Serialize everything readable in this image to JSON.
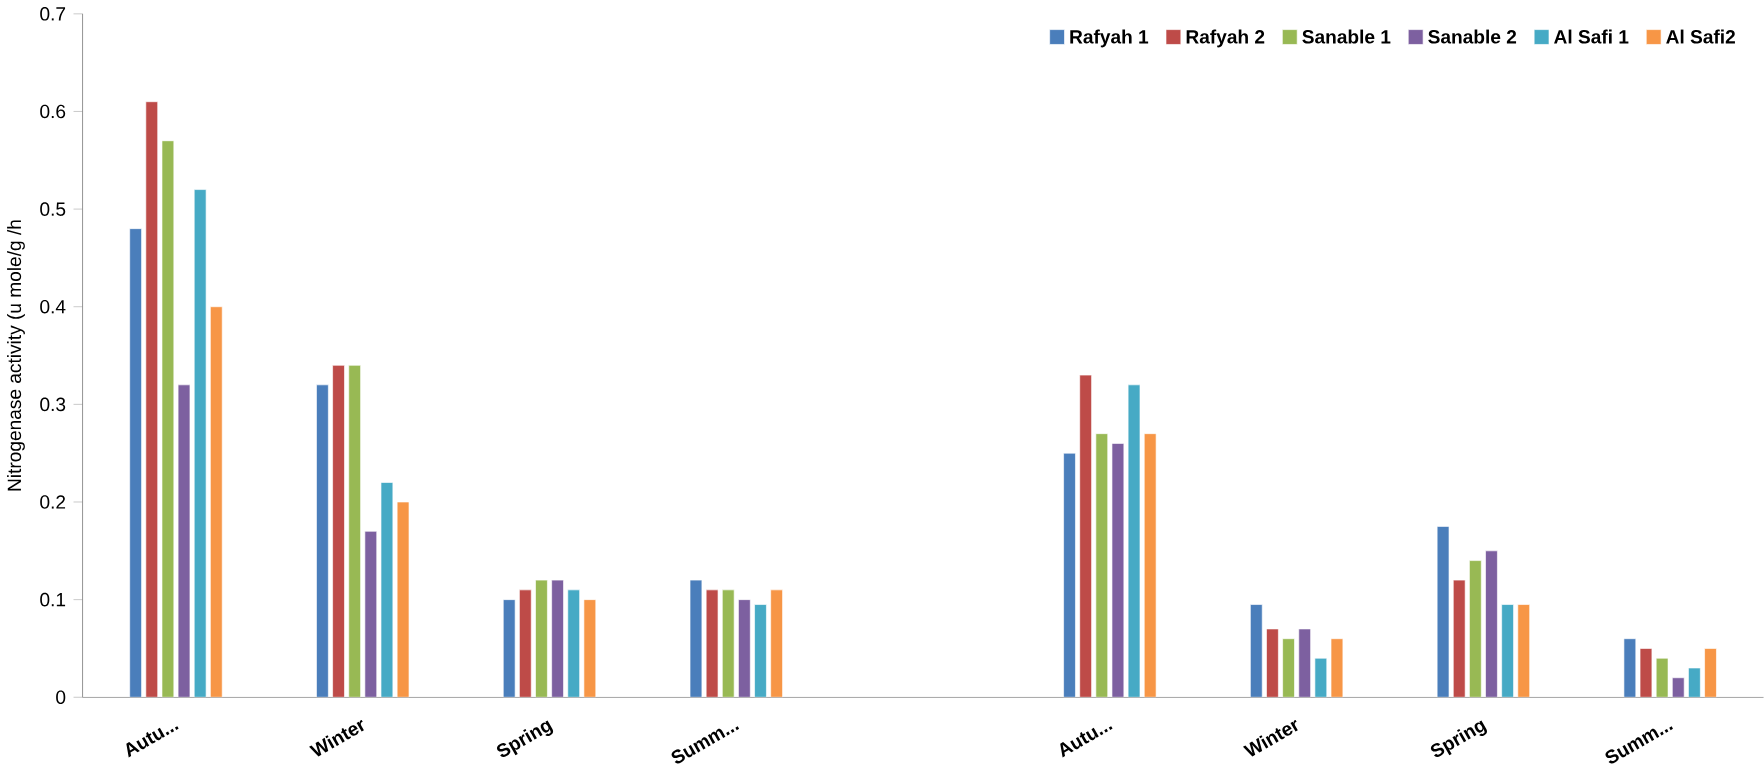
{
  "chart_data": {
    "type": "bar",
    "ylabel": "Nitrogenase activity (u mole/g /h",
    "categories": [
      "Autu...",
      "Winter",
      "Spring",
      "Summ...",
      null,
      "Autu...",
      "Winter",
      "Spring",
      "Summ..."
    ],
    "series": [
      {
        "name": "Rafyah 1",
        "color": "#4a7ebb",
        "values": [
          0.48,
          0.32,
          0.1,
          0.12,
          null,
          0.25,
          0.095,
          0.175,
          0.06
        ]
      },
      {
        "name": "Rafyah 2",
        "color": "#be4b48",
        "values": [
          0.61,
          0.34,
          0.11,
          0.11,
          null,
          0.33,
          0.07,
          0.12,
          0.05
        ]
      },
      {
        "name": "Sanable 1",
        "color": "#98b954",
        "values": [
          0.57,
          0.34,
          0.12,
          0.11,
          null,
          0.27,
          0.06,
          0.14,
          0.04
        ]
      },
      {
        "name": "Sanable 2",
        "color": "#7d60a0",
        "values": [
          0.32,
          0.17,
          0.12,
          0.1,
          null,
          0.26,
          0.07,
          0.15,
          0.02
        ]
      },
      {
        "name": "Al Safi 1",
        "color": "#46aac5",
        "values": [
          0.52,
          0.22,
          0.11,
          0.095,
          null,
          0.32,
          0.04,
          0.095,
          0.03
        ]
      },
      {
        "name": "Al Safi2",
        "color": "#f79646",
        "values": [
          0.4,
          0.2,
          0.1,
          0.11,
          null,
          0.27,
          0.06,
          0.095,
          0.05
        ]
      }
    ],
    "ylim": [
      0,
      0.7
    ],
    "yticks": [
      0,
      0.1,
      0.2,
      0.3,
      0.4,
      0.5,
      0.6,
      0.7
    ],
    "grid": false,
    "legend": "top right"
  }
}
